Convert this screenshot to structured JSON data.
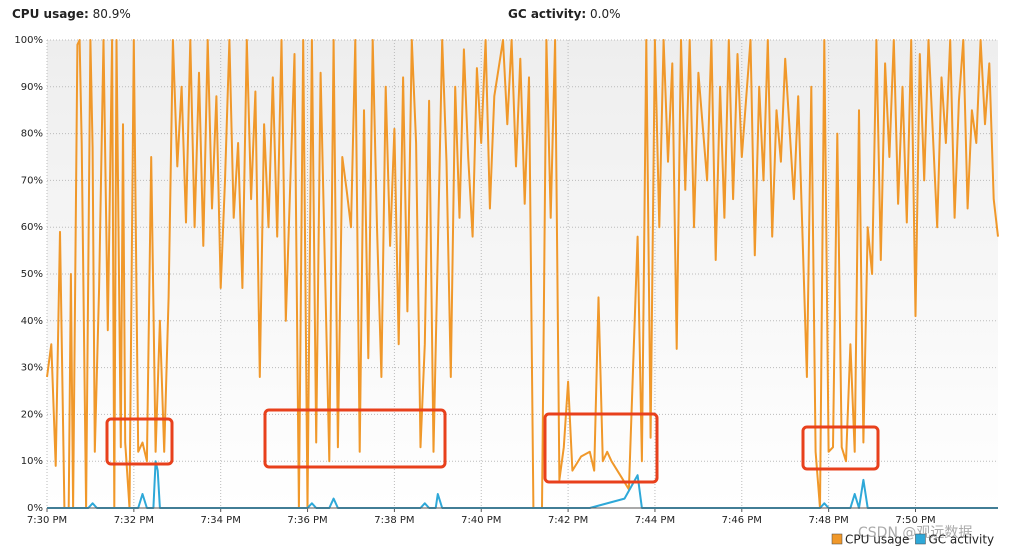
{
  "status": {
    "cpu_label": "CPU usage:",
    "cpu_value": "80.9%",
    "gc_label": "GC activity:",
    "gc_value": "0.0%"
  },
  "watermark": "CSDN @观远数据",
  "chart_data": {
    "type": "line",
    "xlim": [
      0,
      21.9
    ],
    "ylim": [
      0,
      100
    ],
    "grid": true,
    "legend": "bottom-right",
    "xticks": [
      {
        "value": 0,
        "label": "7:30 PM"
      },
      {
        "value": 2,
        "label": "7:32 PM"
      },
      {
        "value": 4,
        "label": "7:34 PM"
      },
      {
        "value": 6,
        "label": "7:36 PM"
      },
      {
        "value": 8,
        "label": "7:38 PM"
      },
      {
        "value": 10,
        "label": "7:40 PM"
      },
      {
        "value": 12,
        "label": "7:42 PM"
      },
      {
        "value": 14,
        "label": "7:44 PM"
      },
      {
        "value": 16,
        "label": "7:46 PM"
      },
      {
        "value": 18,
        "label": "7:48 PM"
      },
      {
        "value": 20,
        "label": "7:50 PM"
      }
    ],
    "yticks": [
      {
        "value": 0,
        "label": "0%"
      },
      {
        "value": 10,
        "label": "10%"
      },
      {
        "value": 20,
        "label": "20%"
      },
      {
        "value": 30,
        "label": "30%"
      },
      {
        "value": 40,
        "label": "40%"
      },
      {
        "value": 50,
        "label": "50%"
      },
      {
        "value": 60,
        "label": "60%"
      },
      {
        "value": 70,
        "label": "70%"
      },
      {
        "value": 80,
        "label": "80%"
      },
      {
        "value": 90,
        "label": "90%"
      },
      {
        "value": 100,
        "label": "100%"
      }
    ],
    "series": [
      {
        "name": "CPU usage",
        "color": "#f0982a",
        "x": [
          0,
          0.1,
          0.2,
          0.3,
          0.4,
          0.5,
          0.55,
          0.6,
          0.7,
          0.75,
          0.8,
          0.9,
          1.0,
          1.05,
          1.1,
          1.2,
          1.3,
          1.4,
          1.5,
          1.55,
          1.6,
          1.7,
          1.75,
          1.8,
          1.9,
          2.0,
          2.1,
          2.2,
          2.3,
          2.4,
          2.5,
          2.6,
          2.7,
          2.8,
          2.9,
          3.0,
          3.1,
          3.2,
          3.3,
          3.4,
          3.5,
          3.6,
          3.7,
          3.8,
          3.9,
          4.0,
          4.1,
          4.2,
          4.3,
          4.4,
          4.5,
          4.6,
          4.7,
          4.8,
          4.9,
          5.0,
          5.1,
          5.2,
          5.3,
          5.4,
          5.5,
          5.7,
          5.8,
          5.9,
          6.0,
          6.1,
          6.2,
          6.3,
          6.5,
          6.6,
          6.7,
          6.8,
          6.9,
          7.0,
          7.1,
          7.2,
          7.3,
          7.4,
          7.5,
          7.6,
          7.7,
          7.8,
          7.9,
          8.0,
          8.1,
          8.2,
          8.3,
          8.4,
          8.5,
          8.6,
          8.7,
          8.8,
          8.9,
          9.0,
          9.1,
          9.2,
          9.3,
          9.4,
          9.5,
          9.6,
          9.7,
          9.8,
          9.9,
          10.0,
          10.1,
          10.2,
          10.3,
          10.5,
          10.6,
          10.7,
          10.8,
          10.9,
          11.0,
          11.1,
          11.2,
          11.4,
          11.5,
          11.6,
          11.7,
          11.8,
          11.9,
          12.0,
          12.1,
          12.3,
          12.5,
          12.6,
          12.7,
          12.8,
          12.9,
          13.0,
          13.2,
          13.4,
          13.6,
          13.7,
          13.8,
          13.9,
          14.0,
          14.1,
          14.2,
          14.3,
          14.4,
          14.5,
          14.6,
          14.7,
          14.8,
          14.9,
          15.0,
          15.2,
          15.3,
          15.4,
          15.5,
          15.6,
          15.7,
          15.8,
          15.9,
          16.0,
          16.2,
          16.3,
          16.4,
          16.5,
          16.6,
          16.7,
          16.8,
          16.9,
          17.0,
          17.2,
          17.3,
          17.5,
          17.6,
          17.7,
          17.8,
          17.9,
          18.0,
          18.1,
          18.2,
          18.3,
          18.4,
          18.5,
          18.6,
          18.7,
          18.8,
          18.9,
          19.0,
          19.1,
          19.2,
          19.3,
          19.4,
          19.5,
          19.6,
          19.7,
          19.8,
          19.9,
          20.0,
          20.1,
          20.2,
          20.3,
          20.5,
          20.6,
          20.7,
          20.8,
          20.9,
          21.0,
          21.1,
          21.2,
          21.3,
          21.4,
          21.5,
          21.6,
          21.7,
          21.8,
          21.9
        ],
        "values": [
          28,
          35,
          9,
          59,
          0,
          0,
          50,
          0,
          99,
          100,
          78,
          0,
          100,
          77,
          12,
          47,
          100,
          38,
          100,
          0,
          100,
          13,
          82,
          14,
          0,
          100,
          12,
          14,
          10,
          75,
          12,
          40,
          12,
          45,
          100,
          73,
          90,
          61,
          100,
          60,
          93,
          56,
          100,
          64,
          88,
          47,
          70,
          100,
          62,
          78,
          47,
          100,
          66,
          89,
          28,
          82,
          60,
          92,
          58,
          100,
          40,
          97,
          0,
          100,
          0,
          100,
          14,
          93,
          10,
          100,
          13,
          75,
          68,
          60,
          100,
          12,
          85,
          32,
          100,
          60,
          28,
          90,
          56,
          81,
          35,
          92,
          42,
          100,
          78,
          13,
          35,
          87,
          12,
          55,
          100,
          74,
          28,
          90,
          62,
          98,
          75,
          58,
          94,
          78,
          100,
          64,
          88,
          100,
          82,
          100,
          73,
          96,
          65,
          92,
          0,
          0,
          100,
          62,
          100,
          6,
          13,
          27,
          8,
          11,
          12,
          8,
          45,
          10,
          12,
          10,
          7,
          4,
          58,
          10,
          100,
          15,
          100,
          60,
          100,
          74,
          95,
          34,
          100,
          68,
          100,
          60,
          93,
          70,
          100,
          53,
          90,
          62,
          100,
          66,
          97,
          75,
          100,
          54,
          90,
          70,
          100,
          58,
          85,
          74,
          96,
          66,
          88,
          28,
          90,
          12,
          0,
          100,
          12,
          13,
          80,
          13,
          10,
          35,
          12,
          85,
          14,
          60,
          50,
          100,
          53,
          95,
          75,
          100,
          65,
          90,
          61,
          100,
          41,
          97,
          70,
          100,
          60,
          92,
          78,
          100,
          62,
          87,
          100,
          64,
          85,
          78,
          100,
          82,
          95,
          66,
          58
        ]
      },
      {
        "name": "GC activity",
        "color": "#2ea8d8",
        "x": [
          0,
          0.95,
          1.05,
          1.15,
          2.1,
          2.2,
          2.3,
          2.45,
          2.5,
          2.55,
          2.6,
          2.7,
          6.0,
          6.1,
          6.2,
          6.5,
          6.6,
          6.7,
          8.6,
          8.7,
          8.8,
          8.95,
          9.0,
          9.1,
          12.5,
          13.3,
          13.6,
          13.7,
          17.8,
          17.9,
          18.0,
          18.5,
          18.6,
          18.7,
          18.8,
          18.9,
          21.9
        ],
        "values": [
          0,
          0,
          1,
          0,
          0,
          3,
          0,
          0,
          10,
          8,
          0,
          0,
          0,
          1,
          0,
          0,
          2,
          0,
          0,
          1,
          0,
          0,
          3,
          0,
          0,
          2,
          7,
          0,
          0,
          1,
          0,
          0,
          3,
          0,
          6,
          0,
          0
        ]
      }
    ]
  }
}
